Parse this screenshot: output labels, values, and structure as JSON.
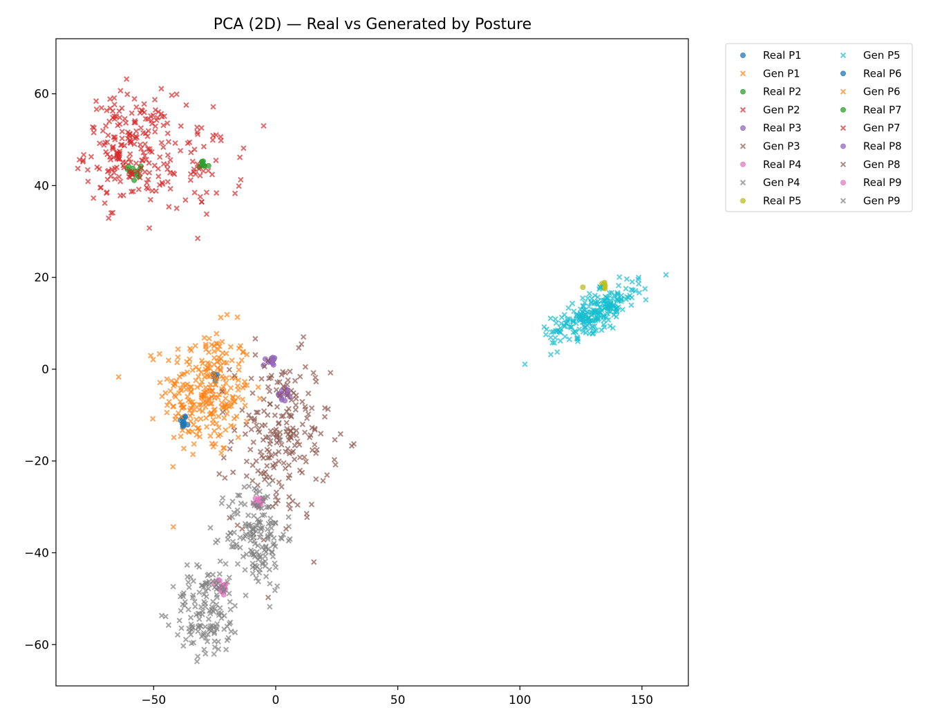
{
  "chart_data": {
    "type": "scatter",
    "title": "PCA (2D) — Real vs Generated by Posture",
    "xlabel": "",
    "ylabel": "",
    "xlim": [
      -90,
      169
    ],
    "ylim": [
      -69,
      72
    ],
    "x_ticks": [
      -50,
      0,
      50,
      100,
      150
    ],
    "y_ticks": [
      -60,
      -40,
      -20,
      0,
      20,
      40,
      60
    ],
    "x_tick_labels": [
      "−50",
      "0",
      "50",
      "100",
      "150"
    ],
    "y_tick_labels": [
      "−60",
      "−40",
      "−20",
      "0",
      "20",
      "40",
      "60"
    ],
    "grid": false,
    "legend_position": "outside-top-right",
    "legend_columns": 2,
    "series": [
      {
        "name": "Real P1",
        "marker": "o",
        "color": "#1f77b4",
        "clusters": [
          {
            "x": -38,
            "y": -11.5,
            "sx": 0.7,
            "sy": 0.8,
            "n": 12
          },
          {
            "x": -25,
            "y": -1.5,
            "sx": 0.8,
            "sy": 0.6,
            "n": 8
          }
        ]
      },
      {
        "name": "Gen  P1",
        "marker": "x",
        "color": "#ff7f0e",
        "clusters": [
          {
            "x": -28,
            "y": -5,
            "sx": 9,
            "sy": 7,
            "n": 260
          }
        ]
      },
      {
        "name": "Real P2",
        "marker": "o",
        "color": "#2ca02c",
        "clusters": [
          {
            "x": -57,
            "y": 43.5,
            "sx": 1.5,
            "sy": 1.5,
            "n": 12
          },
          {
            "x": -30,
            "y": 44.3,
            "sx": 1.2,
            "sy": 0.5,
            "n": 10
          }
        ]
      },
      {
        "name": "Gen  P2",
        "marker": "x",
        "color": "#d62728",
        "clusters": [
          {
            "x": -60,
            "y": 48,
            "sx": 9,
            "sy": 6,
            "n": 200
          },
          {
            "x": -32,
            "y": 45,
            "sx": 9,
            "sy": 6,
            "n": 60
          }
        ]
      },
      {
        "name": "Real P3",
        "marker": "o",
        "color": "#9467bd",
        "clusters": [
          {
            "x": -2.5,
            "y": 2,
            "sx": 1.2,
            "sy": 0.6,
            "n": 14
          },
          {
            "x": 3.5,
            "y": -5.5,
            "sx": 1.5,
            "sy": 0.7,
            "n": 14
          }
        ]
      },
      {
        "name": "Gen  P3",
        "marker": "x",
        "color": "#8c564b",
        "clusters": [
          {
            "x": 2,
            "y": -15,
            "sx": 10,
            "sy": 9,
            "n": 220
          }
        ]
      },
      {
        "name": "Real P4",
        "marker": "o",
        "color": "#e377c2",
        "clusters": [
          {
            "x": -7,
            "y": -29,
            "sx": 1,
            "sy": 0.7,
            "n": 12
          },
          {
            "x": -22,
            "y": -47.5,
            "sx": 1.3,
            "sy": 0.9,
            "n": 18
          }
        ]
      },
      {
        "name": "Gen  P4",
        "marker": "x",
        "color": "#7f7f7f",
        "clusters": [
          {
            "x": -8,
            "y": -36,
            "sx": 6,
            "sy": 6,
            "n": 160
          },
          {
            "x": -28,
            "y": -53,
            "sx": 7,
            "sy": 5,
            "n": 140
          }
        ]
      },
      {
        "name": "Real P5",
        "marker": "o",
        "color": "#bcbd22",
        "clusters": [
          {
            "x": 134,
            "y": 18.5,
            "sx": 1,
            "sy": 0.6,
            "n": 10
          },
          {
            "x": 126,
            "y": 18,
            "sx": 0.2,
            "sy": 0.2,
            "n": 1
          }
        ]
      },
      {
        "name": "Gen  P5",
        "marker": "x",
        "color": "#17becf",
        "clusters": [
          {
            "x": 131,
            "y": 12.5,
            "sx": 9,
            "sy": 3,
            "n": 240,
            "corr": 0.75
          }
        ]
      },
      {
        "name": "Real P6",
        "marker": "o",
        "color": "#1f77b4",
        "clusters": []
      },
      {
        "name": "Gen  P6",
        "marker": "x",
        "color": "#ff7f0e",
        "clusters": []
      },
      {
        "name": "Real P7",
        "marker": "o",
        "color": "#2ca02c",
        "clusters": []
      },
      {
        "name": "Gen  P7",
        "marker": "x",
        "color": "#d62728",
        "clusters": []
      },
      {
        "name": "Real P8",
        "marker": "o",
        "color": "#9467bd",
        "clusters": []
      },
      {
        "name": "Gen  P8",
        "marker": "x",
        "color": "#8c564b",
        "clusters": []
      },
      {
        "name": "Real P9",
        "marker": "o",
        "color": "#e377c2",
        "clusters": []
      },
      {
        "name": "Gen  P9",
        "marker": "x",
        "color": "#7f7f7f",
        "clusters": []
      }
    ]
  }
}
